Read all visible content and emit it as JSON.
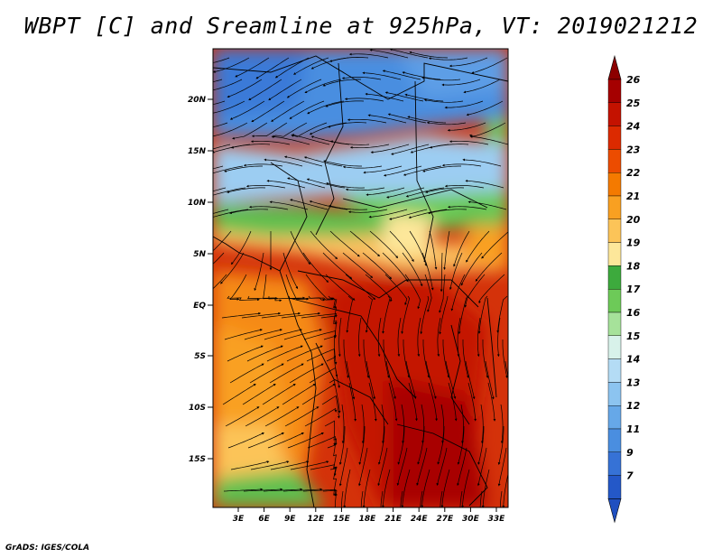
{
  "title": "WBPT [C] and Sreamline at 925hPa, VT: 2019021212",
  "footer": "GrADS: IGES/COLA",
  "map": {
    "lat_labels": [
      "20N",
      "15N",
      "10N",
      "5N",
      "EQ",
      "5S",
      "10S",
      "15S"
    ],
    "lon_labels": [
      "3E",
      "6E",
      "9E",
      "12E",
      "15E",
      "18E",
      "21E",
      "24E",
      "27E",
      "30E",
      "33E"
    ]
  },
  "colorbar": {
    "levels": [
      "26",
      "25",
      "24",
      "23",
      "22",
      "21",
      "20",
      "19",
      "18",
      "17",
      "16",
      "15",
      "14",
      "13",
      "12",
      "11",
      "9",
      "7"
    ],
    "colors": [
      "#a50000",
      "#c41200",
      "#dc2a00",
      "#ec4c00",
      "#f47a00",
      "#f9a021",
      "#fcc458",
      "#fde79a",
      "#3daa3d",
      "#6dca58",
      "#a6e29a",
      "#d8f2ea",
      "#b4dcf5",
      "#8cc4f0",
      "#66a8e8",
      "#4a8ee0",
      "#3672d6",
      "#2458c8"
    ],
    "top_arrow_color": "#8c0000",
    "bottom_arrow_color": "#1f4fc0"
  },
  "field_colors": {
    "cold_blue": "#4a8ee0",
    "light_blue": "#9ccdf2",
    "green": "#53b84a",
    "light_green": "#a6e29a",
    "yellow": "#fde79a",
    "orange": "#f47a00",
    "red_orange": "#e8460a",
    "deep_red": "#c41200"
  }
}
